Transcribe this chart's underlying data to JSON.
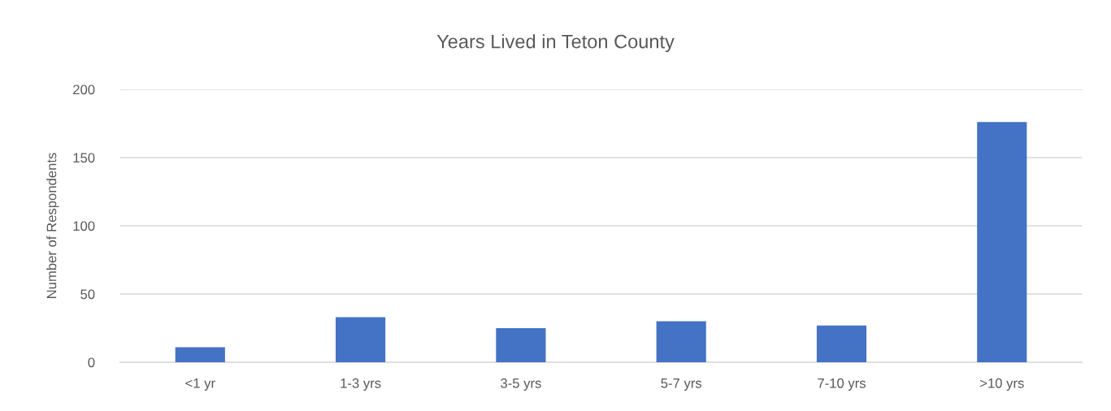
{
  "chart_data": {
    "type": "bar",
    "title": "Years Lived in Teton County",
    "ylabel": "Number of Respondents",
    "categories": [
      "<1 yr",
      "1-3 yrs",
      "3-5 yrs",
      "5-7 yrs",
      "7-10 yrs",
      ">10 yrs"
    ],
    "values": [
      11,
      33,
      25,
      30,
      27,
      176
    ],
    "color": "#4472c4",
    "ylim": [
      0,
      200
    ],
    "yticks": [
      0,
      50,
      100,
      150,
      200
    ],
    "grid": "y",
    "legend": false
  }
}
